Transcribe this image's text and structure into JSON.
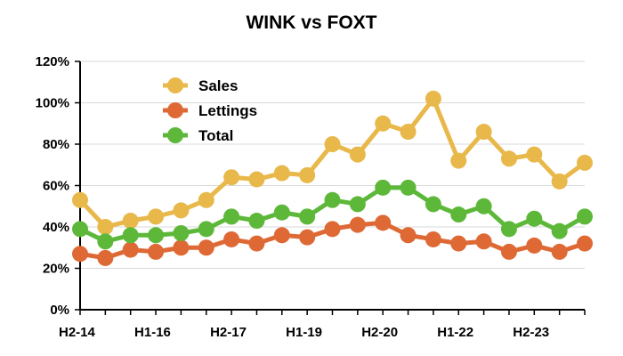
{
  "chart_data": {
    "type": "line",
    "title": "WINK vs FOXT",
    "xlabel": "",
    "ylabel": "",
    "ylim": [
      0,
      120
    ],
    "y_ticks": [
      "0%",
      "20%",
      "40%",
      "60%",
      "80%",
      "100%",
      "120%"
    ],
    "y_tick_values": [
      0,
      20,
      40,
      60,
      80,
      100,
      120
    ],
    "x_tick_labels": [
      {
        "index": 0,
        "label": "H2-14"
      },
      {
        "index": 3,
        "label": "H1-16"
      },
      {
        "index": 6,
        "label": "H2-17"
      },
      {
        "index": 9,
        "label": "H1-19"
      },
      {
        "index": 12,
        "label": "H2-20"
      },
      {
        "index": 15,
        "label": "H1-22"
      },
      {
        "index": 18,
        "label": "H2-23"
      }
    ],
    "point_count": 21,
    "grid": true,
    "legend_position": "top-left",
    "series": [
      {
        "name": "Sales",
        "color": "#E8B84A",
        "values": [
          53,
          40,
          43,
          45,
          48,
          53,
          64,
          63,
          66,
          65,
          80,
          75,
          90,
          86,
          102,
          72,
          86,
          73,
          75,
          62,
          71
        ]
      },
      {
        "name": "Lettings",
        "color": "#DE6935",
        "values": [
          27,
          25,
          29,
          28,
          30,
          30,
          34,
          32,
          36,
          35,
          39,
          41,
          42,
          36,
          34,
          32,
          33,
          28,
          31,
          28,
          32
        ]
      },
      {
        "name": "Total",
        "color": "#5DB83A",
        "values": [
          39,
          33,
          36,
          36,
          37,
          39,
          45,
          43,
          47,
          45,
          53,
          51,
          59,
          59,
          51,
          46,
          50,
          39,
          44,
          38,
          45
        ]
      }
    ]
  }
}
